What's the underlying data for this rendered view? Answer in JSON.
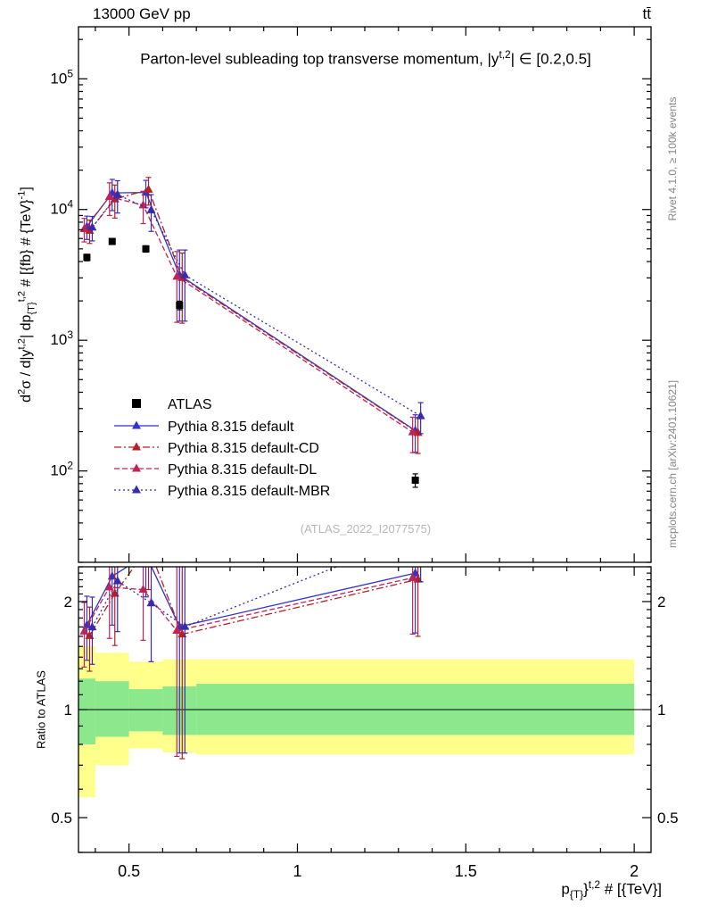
{
  "header": {
    "left": "13000 GeV pp",
    "right": "tt̄"
  },
  "labels": {
    "title_parts": [
      {
        "t": "Parton-level subleading top transverse momentum, |y"
      },
      {
        "t": "t,2",
        "s": "sup"
      },
      {
        "t": "| ∈ [0.2,0.5]"
      }
    ],
    "ylabel_main_parts": [
      {
        "t": "d"
      },
      {
        "t": "2",
        "s": "sup"
      },
      {
        "t": "σ / d|y"
      },
      {
        "t": "t,2",
        "s": "sup"
      },
      {
        "t": "| dp"
      },
      {
        "t": "{T}",
        "s": "sub"
      },
      {
        "t": "t,2",
        "s": "sup"
      },
      {
        "t": " # [{fb} # {TeV}"
      },
      {
        "t": "-1",
        "s": "sup"
      },
      {
        "t": "]"
      }
    ],
    "xlabel_parts": [
      {
        "t": "p"
      },
      {
        "t": "{T}",
        "s": "sub"
      },
      {
        "t": "}"
      },
      {
        "t": "t,2",
        "s": "sup"
      },
      {
        "t": " # [{TeV}]"
      }
    ],
    "ylabel_ratio": "Ratio to ATLAS",
    "rivet_credit": "Rivet 4.1.0, ≥ 100k events",
    "mcplots_credit": "mcplots.cern.ch [arXiv:2401.10621]",
    "watermark": "(ATLAS_2022_I2077575)"
  },
  "chart_data": {
    "type": "line",
    "title": "Parton-level subleading top transverse momentum, |y^{t,2}| ∈ [0.2,0.5]",
    "xlabel": "p_{T}^{t,2} [TeV]",
    "ylabel": "d2σ / d|y^{t,2}| dp_{T}^{t,2} [fb/TeV]",
    "ratio_label": "Ratio to ATLAS",
    "legend_position": "middle-left",
    "grid": false,
    "xlim": [
      0.35,
      2.05
    ],
    "ylim_main": [
      20,
      250000
    ],
    "ylim_ratio": [
      0.4,
      2.5
    ],
    "x_ticks": [
      0.5,
      1,
      1.5,
      2
    ],
    "x_tick_labels": [
      "0.5",
      "1",
      "1.5",
      "2"
    ],
    "y_ticks_main_exponents": [
      2,
      3,
      4,
      5
    ],
    "y_ticks_ratio": [
      0.5,
      1,
      2
    ],
    "y_tick_ratio_labels": [
      "0.5",
      "1",
      "2"
    ],
    "x": [
      0.375,
      0.45,
      0.55,
      0.65,
      1.35
    ],
    "bin_edges": [
      0.35,
      0.4,
      0.5,
      0.6,
      0.7,
      2.0
    ],
    "atlas": {
      "id": "atlas",
      "label": "ATLAS",
      "color": "#000000",
      "values": [
        4300,
        5700,
        5000,
        1850,
        85
      ],
      "err": [
        250,
        300,
        280,
        140,
        10
      ]
    },
    "series": [
      {
        "id": "pythia-default",
        "label": "Pythia 8.315 default",
        "color": "#3232cd",
        "dash": "",
        "dx": 0,
        "values": [
          7400,
          13400,
          13500,
          3150,
          204
        ],
        "err": [
          1500,
          3600,
          3200,
          1750,
          65
        ]
      },
      {
        "id": "pythia-default-cd",
        "label": "Pythia 8.315 default-CD",
        "color": "#b22222",
        "dash": "8 3 2 3",
        "dx": 3,
        "values": [
          6900,
          12000,
          14200,
          3000,
          196
        ],
        "err": [
          1400,
          3400,
          3400,
          1650,
          60
        ]
      },
      {
        "id": "pythia-default-dl",
        "label": "Pythia 8.315 default-DL",
        "color": "#bf2257",
        "dash": "6 3",
        "dx": -3,
        "values": [
          7100,
          12500,
          10800,
          3070,
          198
        ],
        "err": [
          1450,
          3500,
          3000,
          1700,
          60
        ]
      },
      {
        "id": "pythia-default-mbr",
        "label": "Pythia 8.315 default-MBR",
        "color": "#372aad",
        "dash": "2 3",
        "dx": 6,
        "values": [
          7300,
          13000,
          9900,
          3150,
          263
        ],
        "err": [
          1550,
          3600,
          3100,
          1750,
          70
        ]
      }
    ],
    "bands": {
      "yellow_color": "#ffff8c",
      "green_color": "#8ce88c",
      "yellow": [
        [
          0.57,
          1.5
        ],
        [
          0.7,
          1.44
        ],
        [
          0.78,
          1.36
        ],
        [
          0.76,
          1.38
        ],
        [
          0.75,
          1.38
        ]
      ],
      "green": [
        [
          0.8,
          1.22
        ],
        [
          0.84,
          1.2
        ],
        [
          0.87,
          1.14
        ],
        [
          0.85,
          1.16
        ],
        [
          0.85,
          1.18
        ]
      ]
    }
  }
}
